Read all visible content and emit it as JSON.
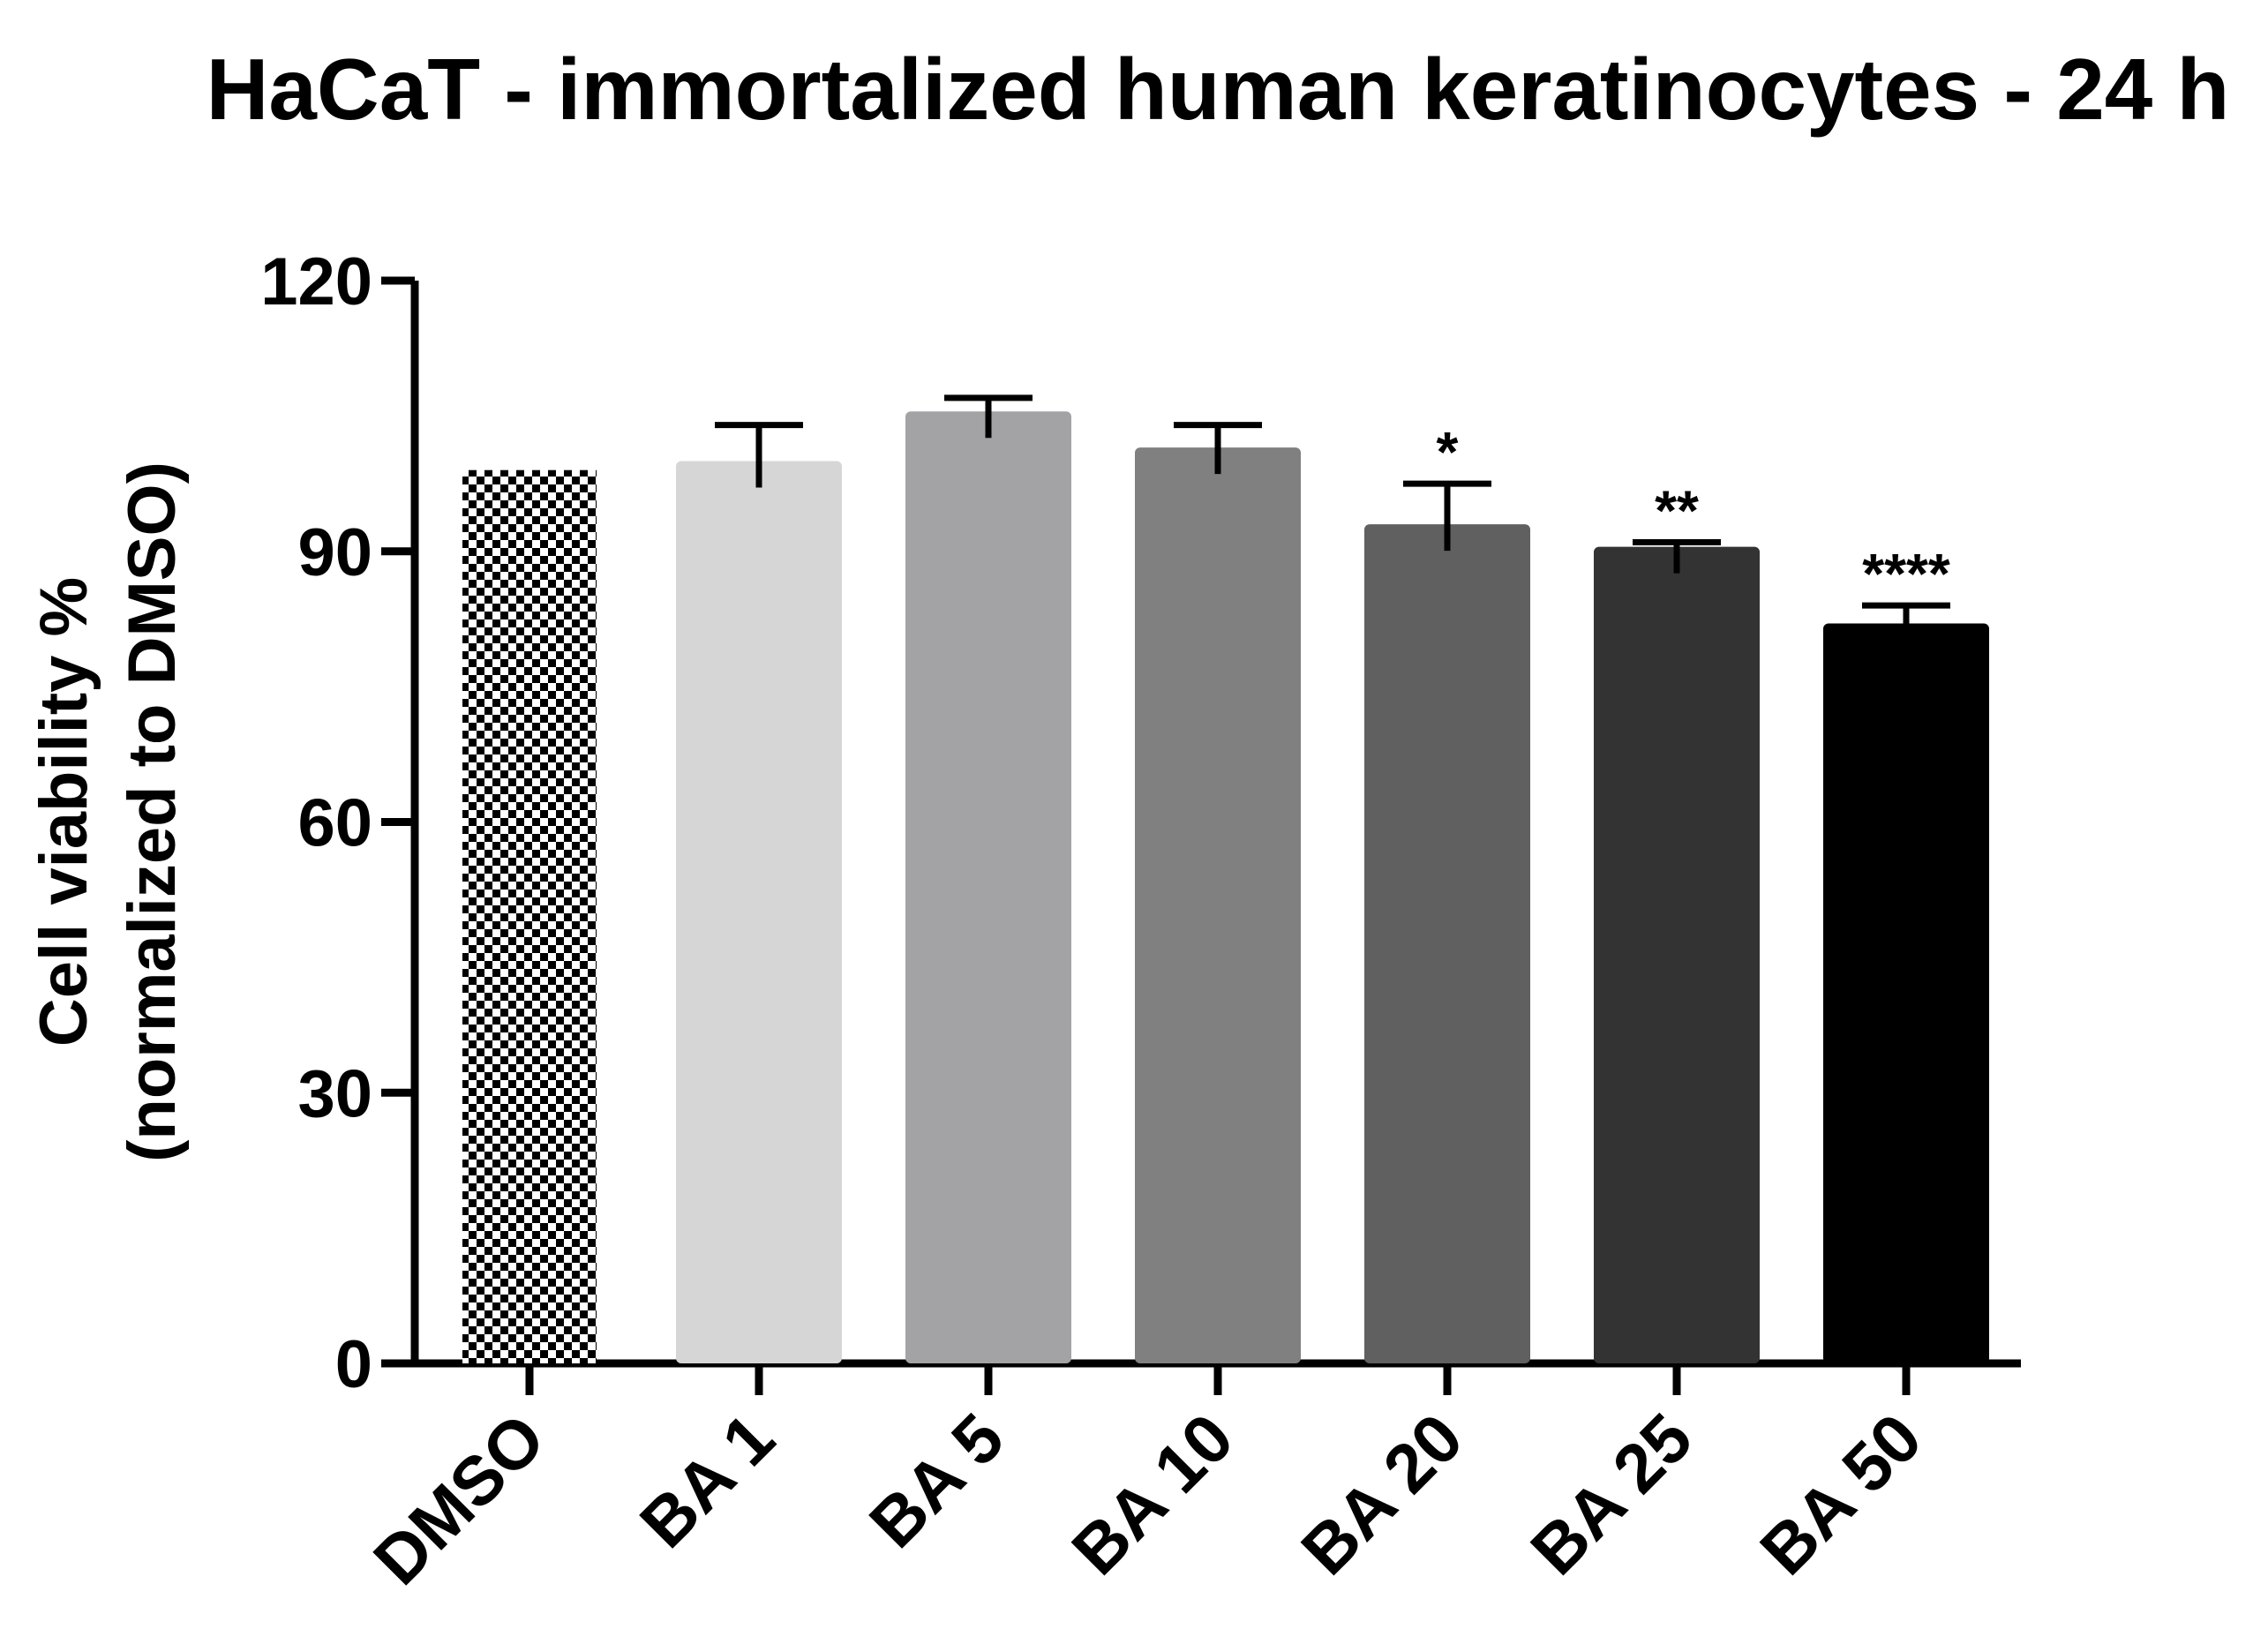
{
  "chart_data": {
    "type": "bar",
    "title": "HaCaT - immortalized human keratinocytes - 24 h",
    "xlabel": "",
    "ylabel_line1": "Cell viability %",
    "ylabel_line2": "(normalized to DMSO)",
    "ylim": [
      0,
      120
    ],
    "yticks": [
      0,
      30,
      60,
      90,
      120
    ],
    "ytick_labels": [
      "0",
      "30",
      "60",
      "90",
      "120"
    ],
    "categories": [
      "DMSO",
      "BA 1",
      "BA 5",
      "BA 10",
      "BA 20",
      "BA 25",
      "BA 50"
    ],
    "values": [
      99,
      100,
      105.5,
      101.5,
      93,
      90.5,
      82
    ],
    "errors": [
      0,
      4,
      1.5,
      2.5,
      4.5,
      0.5,
      2
    ],
    "significance": [
      "",
      "",
      "",
      "",
      "*",
      "**",
      "****"
    ],
    "colors": [
      "checker",
      "#d6d6d6",
      "#a3a3a6",
      "#808080",
      "#606060",
      "#333333",
      "#000000"
    ],
    "grid": false,
    "legend": "none"
  }
}
